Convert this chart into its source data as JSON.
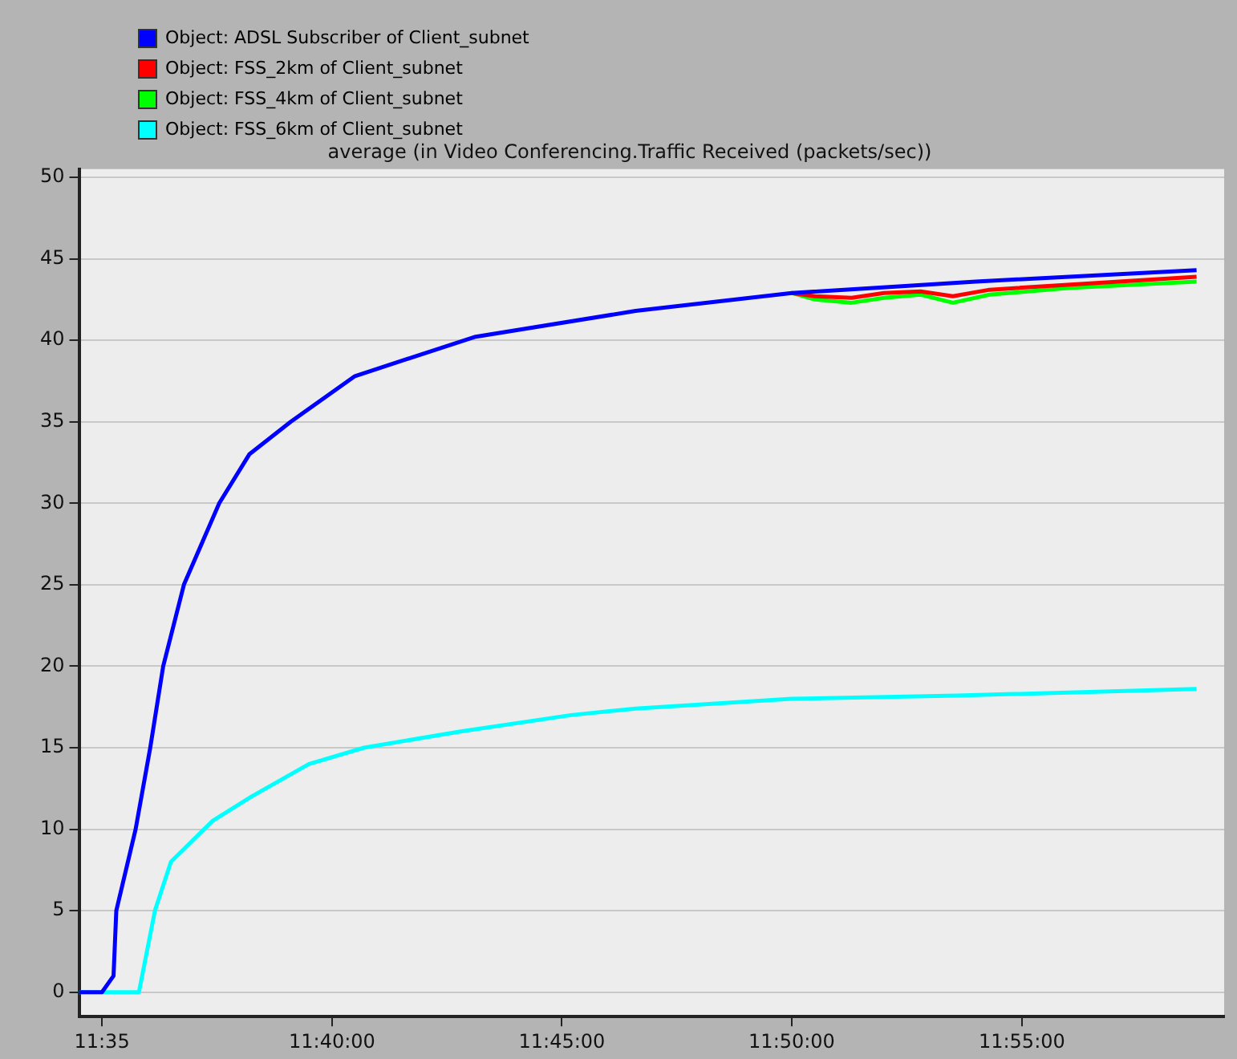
{
  "chart_data": {
    "type": "line",
    "title": "average (in Video Conferencing.Traffic Received (packets/sec))",
    "xlim": [
      11.575,
      11.99
    ],
    "xticks": [
      {
        "value": 11.5833,
        "label": "11:35"
      },
      {
        "value": 11.6667,
        "label": "11:40:00"
      },
      {
        "value": 11.75,
        "label": "11:45:00"
      },
      {
        "value": 11.8333,
        "label": "11:50:00"
      },
      {
        "value": 11.9167,
        "label": "11:55:00"
      }
    ],
    "ylim": [
      -1.5,
      50.5
    ],
    "yticks": [
      0,
      5,
      10,
      15,
      20,
      25,
      30,
      35,
      40,
      45,
      50
    ],
    "grid": "y",
    "legend": "top left",
    "marker": "none",
    "line_style": "solid",
    "series": [
      {
        "name": "Object: ADSL Subscriber of Client_subnet",
        "color": "#0000ff",
        "x": [
          11.575,
          11.5833,
          11.5875,
          11.5885,
          11.5955,
          11.6008,
          11.6055,
          11.613,
          11.6258,
          11.6367,
          11.6517,
          11.675,
          11.7183,
          11.7767,
          11.8333,
          11.9,
          11.98
        ],
        "values": [
          0,
          0,
          1,
          5,
          10,
          15,
          20,
          25,
          30,
          33,
          35,
          37.8,
          40.2,
          41.8,
          42.9,
          43.6,
          44.3
        ]
      },
      {
        "name": "Object: FSS_2km of Client_subnet",
        "color": "#ff0000",
        "x": [
          11.8333,
          11.8417,
          11.855,
          11.8667,
          11.88,
          11.8917,
          11.905,
          11.98
        ],
        "values": [
          42.9,
          42.7,
          42.6,
          42.9,
          43,
          42.7,
          43.1,
          43.9
        ]
      },
      {
        "name": "Object: FSS_4km of Client_subnet",
        "color": "#00ff00",
        "x": [
          11.8333,
          11.8417,
          11.855,
          11.8667,
          11.88,
          11.8917,
          11.905,
          11.9333,
          11.98
        ],
        "values": [
          42.9,
          42.5,
          42.3,
          42.6,
          42.8,
          42.3,
          42.8,
          43.2,
          43.6
        ]
      },
      {
        "name": "Object: FSS_6km of Client_subnet",
        "color": "#00ffff",
        "x": [
          11.575,
          11.5967,
          11.6025,
          11.6083,
          11.6233,
          11.6375,
          11.6583,
          11.6783,
          11.7133,
          11.7533,
          11.7767,
          11.8333,
          11.8933,
          11.98
        ],
        "values": [
          0,
          0,
          5,
          8,
          10.5,
          12,
          14,
          15,
          16,
          17,
          17.4,
          18,
          18.2,
          18.6
        ]
      }
    ]
  }
}
